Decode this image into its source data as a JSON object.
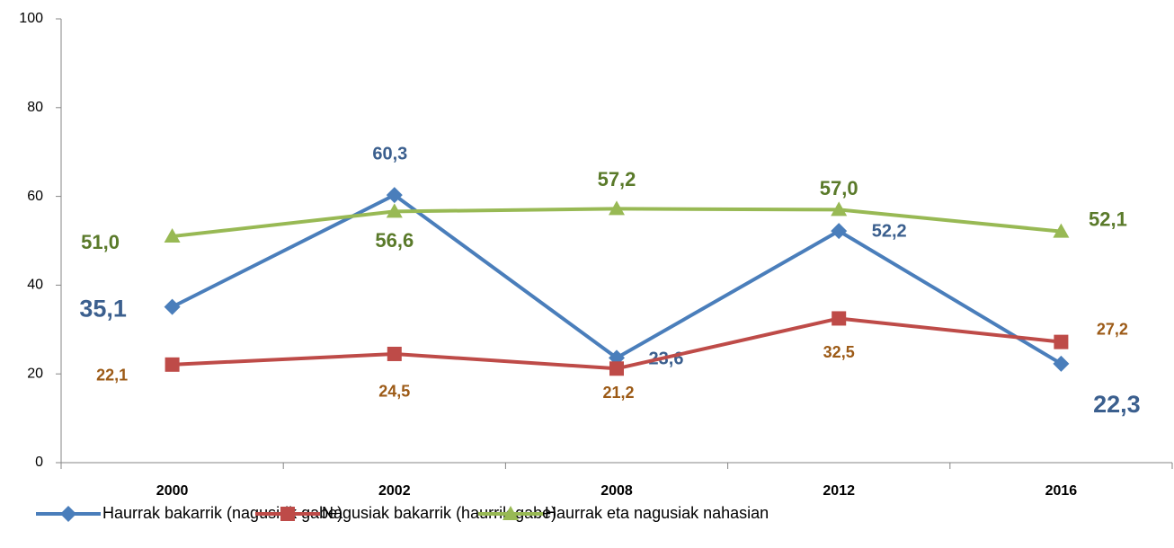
{
  "chart_data": {
    "type": "line",
    "categories": [
      "2000",
      "2002",
      "2008",
      "2012",
      "2016"
    ],
    "ylim": [
      0,
      100
    ],
    "yticks": [
      0,
      20,
      40,
      60,
      80,
      100
    ],
    "grid": false,
    "legend": "bottom",
    "series": [
      {
        "name": "Haurrak bakarrik (nagusirik gabe)",
        "color": "#4a7ebb",
        "label_color": "#3b5f8e",
        "marker": "diamond",
        "values": [
          35.1,
          60.3,
          23.6,
          52.2,
          22.3
        ],
        "value_labels": [
          "35,1",
          "60,3",
          "23,6",
          "52,2",
          "22,3"
        ]
      },
      {
        "name": "Nagusiak bakarrik (haurrik gabe)",
        "color": "#be4b48",
        "label_color": "#9c5a16",
        "marker": "square",
        "values": [
          22.1,
          24.5,
          21.2,
          32.5,
          27.2
        ],
        "value_labels": [
          "22,1",
          "24,5",
          "21,2",
          "32,5",
          "27,2"
        ]
      },
      {
        "name": "Haurrak eta nagusiak nahasian",
        "color": "#98b954",
        "label_color": "#5a7a2a",
        "marker": "triangle",
        "values": [
          51.0,
          56.6,
          57.2,
          57.0,
          52.1
        ],
        "value_labels": [
          "51,0",
          "56,6",
          "57,2",
          "57,0",
          "52,1"
        ]
      }
    ]
  }
}
